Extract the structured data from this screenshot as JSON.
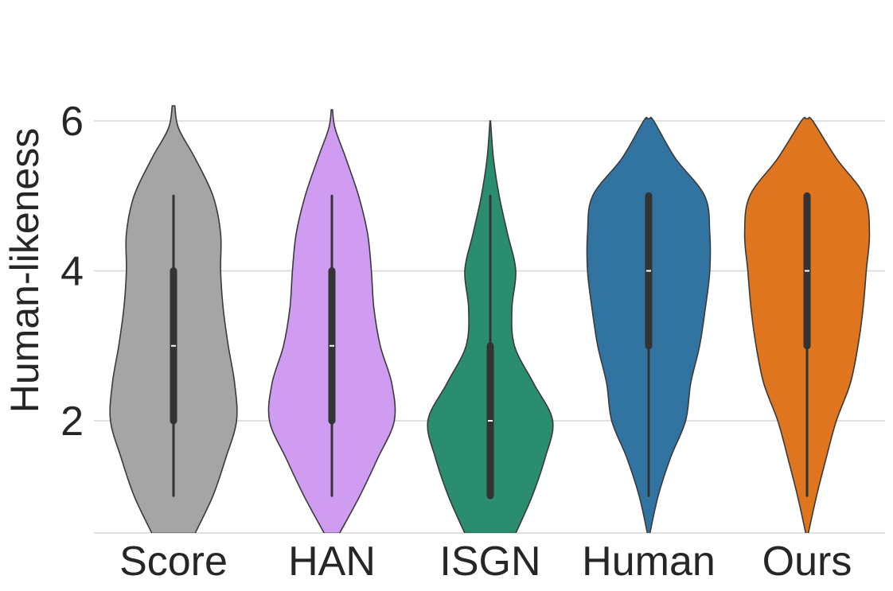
{
  "chart_data": {
    "type": "violin",
    "title": "",
    "xlabel": "",
    "ylabel": "Human-likeness",
    "ylim": [
      0.5,
      6
    ],
    "yticks": [
      2,
      4,
      6
    ],
    "ytick_labels": [
      "2",
      "4",
      "6"
    ],
    "grid": "horizontal",
    "categories": [
      "Score",
      "HAN",
      "ISGN",
      "Human",
      "Ours"
    ],
    "series": [
      {
        "category": "Score",
        "color": "#a5a5a5",
        "min": 1,
        "q1": 2,
        "median": 3,
        "q3": 4,
        "max": 5,
        "density": [
          [
            0.5,
            0.34
          ],
          [
            1.0,
            0.62
          ],
          [
            1.5,
            0.82
          ],
          [
            2.0,
            0.99
          ],
          [
            2.5,
            0.96
          ],
          [
            3.0,
            0.86
          ],
          [
            3.5,
            0.78
          ],
          [
            4.0,
            0.74
          ],
          [
            4.5,
            0.74
          ],
          [
            5.0,
            0.62
          ],
          [
            5.5,
            0.34
          ],
          [
            5.9,
            0.08
          ],
          [
            6.2,
            0.02
          ]
        ]
      },
      {
        "category": "HAN",
        "color": "#cf9cf2",
        "min": 1,
        "q1": 2,
        "median": 3,
        "q3": 4,
        "max": 5,
        "density": [
          [
            0.5,
            0.12
          ],
          [
            1.0,
            0.44
          ],
          [
            1.5,
            0.72
          ],
          [
            2.0,
            0.98
          ],
          [
            2.5,
            0.94
          ],
          [
            3.0,
            0.76
          ],
          [
            3.5,
            0.66
          ],
          [
            4.0,
            0.62
          ],
          [
            4.5,
            0.56
          ],
          [
            5.0,
            0.42
          ],
          [
            5.5,
            0.22
          ],
          [
            5.9,
            0.05
          ],
          [
            6.15,
            0.01
          ]
        ]
      },
      {
        "category": "ISGN",
        "color": "#2b8d70",
        "min": 1,
        "q1": 1,
        "median": 2,
        "q3": 3,
        "max": 5,
        "density": [
          [
            0.5,
            0.4
          ],
          [
            1.0,
            0.66
          ],
          [
            1.5,
            0.86
          ],
          [
            2.0,
            0.98
          ],
          [
            2.5,
            0.68
          ],
          [
            3.0,
            0.38
          ],
          [
            3.5,
            0.34
          ],
          [
            4.0,
            0.4
          ],
          [
            4.5,
            0.27
          ],
          [
            5.0,
            0.14
          ],
          [
            5.5,
            0.05
          ],
          [
            6.0,
            0.005
          ]
        ]
      },
      {
        "category": "Human",
        "color": "#3274a1",
        "min": 1,
        "q1": 3,
        "median": 4,
        "q3": 5,
        "max": 5,
        "density": [
          [
            0.5,
            0.02
          ],
          [
            1.0,
            0.15
          ],
          [
            1.5,
            0.34
          ],
          [
            2.0,
            0.58
          ],
          [
            2.5,
            0.66
          ],
          [
            3.0,
            0.8
          ],
          [
            3.5,
            0.89
          ],
          [
            4.0,
            0.96
          ],
          [
            4.5,
            0.96
          ],
          [
            5.0,
            0.88
          ],
          [
            5.5,
            0.42
          ],
          [
            6.0,
            0.08
          ],
          [
            6.03,
            0.02
          ]
        ]
      },
      {
        "category": "Ours",
        "color": "#e07520",
        "min": 1,
        "q1": 3,
        "median": 4,
        "q3": 5,
        "max": 5,
        "density": [
          [
            0.5,
            0.02
          ],
          [
            1.0,
            0.15
          ],
          [
            1.5,
            0.3
          ],
          [
            2.0,
            0.46
          ],
          [
            2.5,
            0.68
          ],
          [
            3.0,
            0.8
          ],
          [
            3.5,
            0.88
          ],
          [
            4.0,
            0.93
          ],
          [
            4.5,
            0.98
          ],
          [
            5.0,
            0.9
          ],
          [
            5.5,
            0.46
          ],
          [
            6.0,
            0.09
          ],
          [
            6.03,
            0.02
          ]
        ]
      }
    ]
  }
}
